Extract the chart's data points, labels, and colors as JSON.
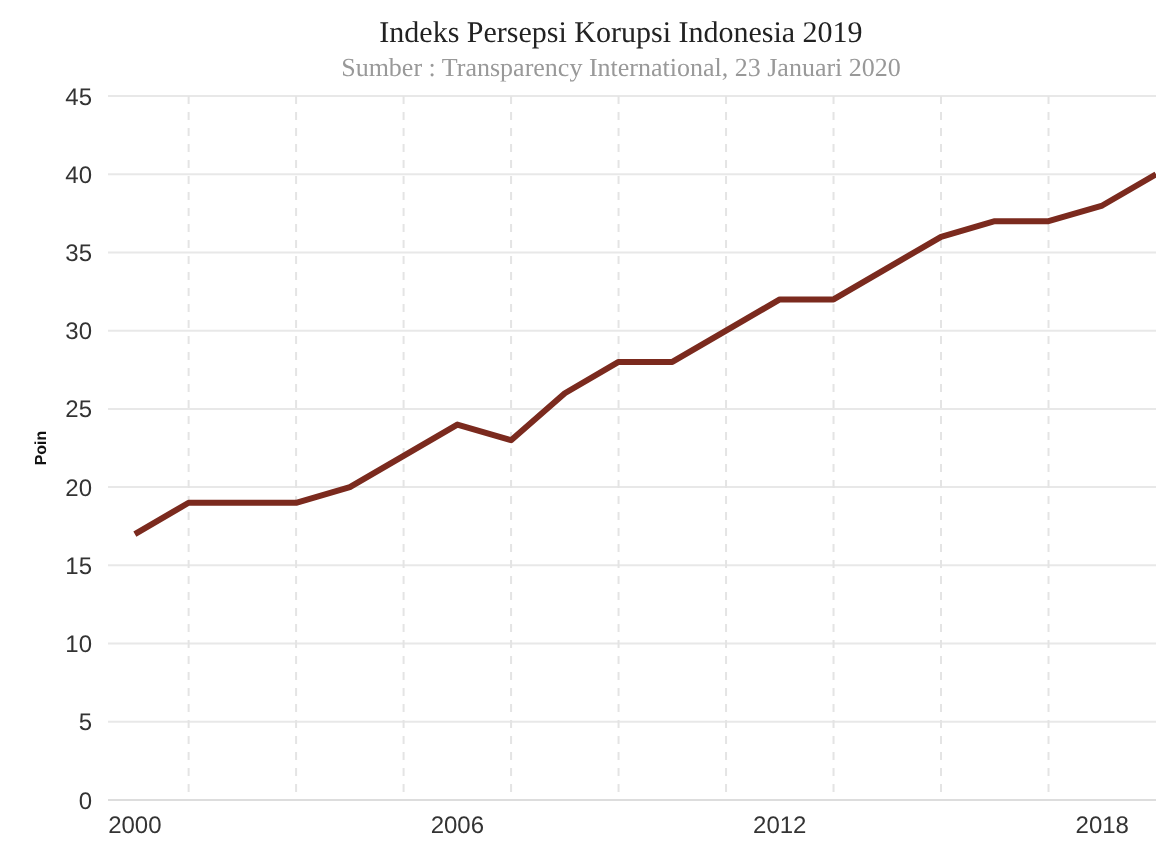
{
  "chart_data": {
    "type": "line",
    "title": "Indeks Persepsi Korupsi Indonesia 2019",
    "subtitle": "Sumber : Transparency International, 23 Januari 2020",
    "ylabel": "Poin",
    "x": [
      2000,
      2001,
      2002,
      2003,
      2004,
      2005,
      2006,
      2007,
      2008,
      2009,
      2010,
      2011,
      2012,
      2013,
      2014,
      2015,
      2016,
      2017,
      2018,
      2019
    ],
    "series": [
      {
        "color": "#7b2a1e",
        "values": [
          17,
          19,
          19,
          19,
          20,
          22,
          24,
          23,
          26,
          28,
          28,
          30,
          32,
          32,
          34,
          36,
          37,
          37,
          38,
          40
        ]
      }
    ],
    "xlim": [
      1999.5,
      2019
    ],
    "xticks": [
      2000,
      {
        "value": 2001,
        "label": null
      },
      {
        "value": 2003,
        "label": null
      },
      {
        "value": 2005,
        "label": null
      },
      2006,
      {
        "value": 2007,
        "label": null
      },
      {
        "value": 2009,
        "label": null
      },
      {
        "value": 2011,
        "label": null
      },
      2012,
      {
        "value": 2013,
        "label": null
      },
      {
        "value": 2015,
        "label": null
      },
      {
        "value": 2017,
        "label": null
      },
      2018
    ],
    "ylim": [
      0,
      45
    ],
    "yticks": [
      0,
      5,
      10,
      15,
      20,
      25,
      30,
      35,
      40,
      45
    ],
    "grid": true,
    "marker": "none",
    "line_style": "solid",
    "legend": false
  }
}
